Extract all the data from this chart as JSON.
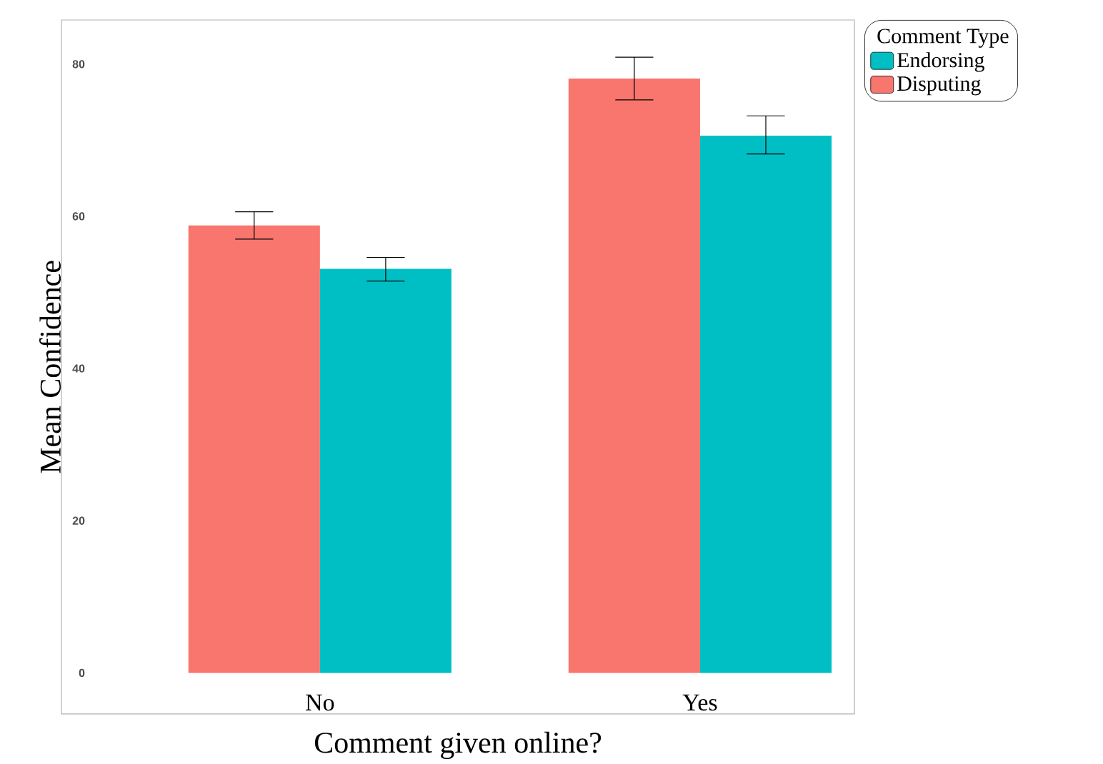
{
  "chart_data": {
    "type": "bar",
    "xlabel": "Comment given online?",
    "ylabel": "Mean Confidence",
    "legend_title": "Comment Type",
    "categories": [
      "No",
      "Yes"
    ],
    "series": [
      {
        "name": "Disputing",
        "color": "#f8766d",
        "values": [
          58.8,
          78.1
        ],
        "errors": [
          [
            57.0,
            60.6
          ],
          [
            75.3,
            80.9
          ]
        ]
      },
      {
        "name": "Endorsing",
        "color": "#00bfc4",
        "values": [
          53.1,
          70.6
        ],
        "errors": [
          [
            51.5,
            54.6
          ],
          [
            68.2,
            73.2
          ]
        ]
      }
    ],
    "ylim": [
      -5.4,
      85.8
    ],
    "yticks": [
      0,
      20,
      40,
      60,
      80
    ],
    "grid": false,
    "legend": "right"
  }
}
